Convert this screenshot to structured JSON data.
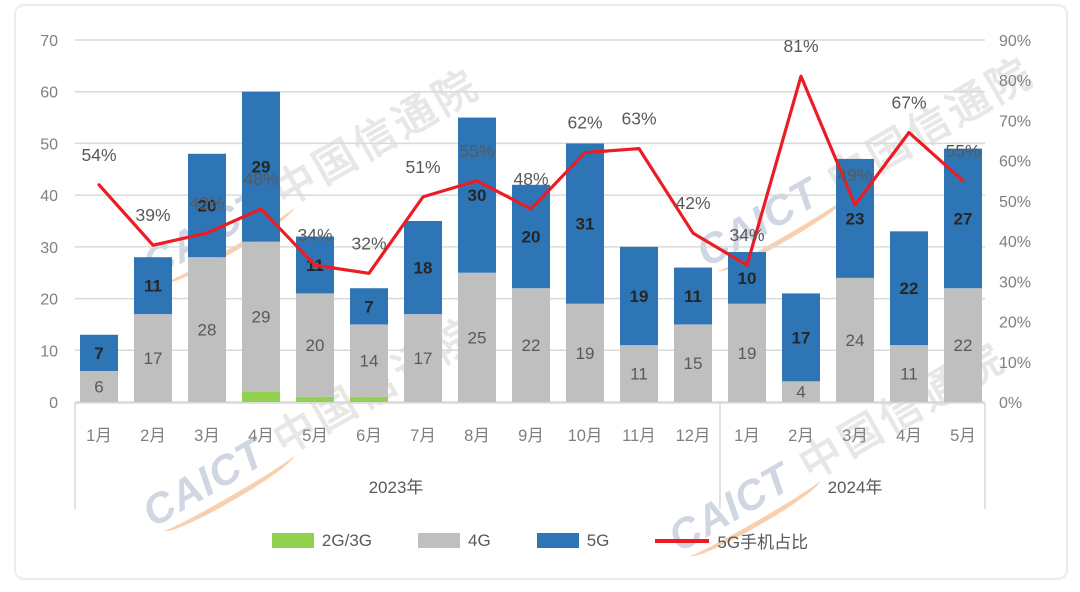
{
  "watermark": {
    "latin": "CAICT",
    "cjk": "中国信通院"
  },
  "legend": {
    "items": [
      {
        "label": "2G/3G",
        "type": "box",
        "color": "#92D050"
      },
      {
        "label": "4G",
        "type": "box",
        "color": "#BFBFBF"
      },
      {
        "label": "5G",
        "type": "box",
        "color": "#2E75B6"
      },
      {
        "label": "5G手机占比",
        "type": "line",
        "color": "#EC1C24"
      }
    ]
  },
  "chart_data": {
    "type": "stacked-bar+line",
    "title": "",
    "categories": [
      "1月",
      "2月",
      "3月",
      "4月",
      "5月",
      "6月",
      "7月",
      "8月",
      "9月",
      "10月",
      "11月",
      "12月",
      "1月",
      "2月",
      "3月",
      "4月",
      "5月"
    ],
    "groups": [
      {
        "label": "2023年",
        "from": 0,
        "to": 11
      },
      {
        "label": "2024年",
        "from": 12,
        "to": 16
      }
    ],
    "series": [
      {
        "name": "2G/3G",
        "kind": "bar",
        "color": "#92D050",
        "show_labels": false,
        "values": [
          0,
          0,
          0,
          2,
          1,
          1,
          0,
          0,
          0,
          0,
          0,
          0,
          0,
          0,
          0,
          0,
          0
        ]
      },
      {
        "name": "4G",
        "kind": "bar",
        "color": "#BFBFBF",
        "label_color": "#595959",
        "label_bold": false,
        "values": [
          6,
          17,
          28,
          29,
          20,
          14,
          17,
          25,
          22,
          19,
          11,
          15,
          19,
          4,
          24,
          11,
          22
        ]
      },
      {
        "name": "5G",
        "kind": "bar",
        "color": "#2E75B6",
        "label_color": "#262626",
        "label_bold": true,
        "values": [
          7,
          11,
          20,
          29,
          11,
          7,
          18,
          30,
          20,
          31,
          19,
          11,
          10,
          17,
          23,
          22,
          27
        ]
      },
      {
        "name": "5G手机占比",
        "kind": "line",
        "axis": "right",
        "color": "#EC1C24",
        "label_color": "#595959",
        "values": [
          54,
          39,
          42,
          48,
          34,
          32,
          51,
          55,
          48,
          62,
          63,
          42,
          34,
          81,
          49,
          67,
          55
        ],
        "labels": [
          "54%",
          "39%",
          "42%",
          "48%",
          "34%",
          "32%",
          "51%",
          "55%",
          "48%",
          "62%",
          "63%",
          "42%",
          "34%",
          "81%",
          "49%",
          "67%",
          "55%"
        ]
      }
    ],
    "left_axis": {
      "min": 0,
      "max": 70,
      "step": 10,
      "ticks": [
        "0",
        "10",
        "20",
        "30",
        "40",
        "50",
        "60",
        "70"
      ]
    },
    "right_axis": {
      "min": 0,
      "max": 90,
      "step": 10,
      "ticks": [
        "0%",
        "10%",
        "20%",
        "30%",
        "40%",
        "50%",
        "60%",
        "70%",
        "80%",
        "90%"
      ]
    },
    "grid": true,
    "legend_position": "bottom"
  }
}
